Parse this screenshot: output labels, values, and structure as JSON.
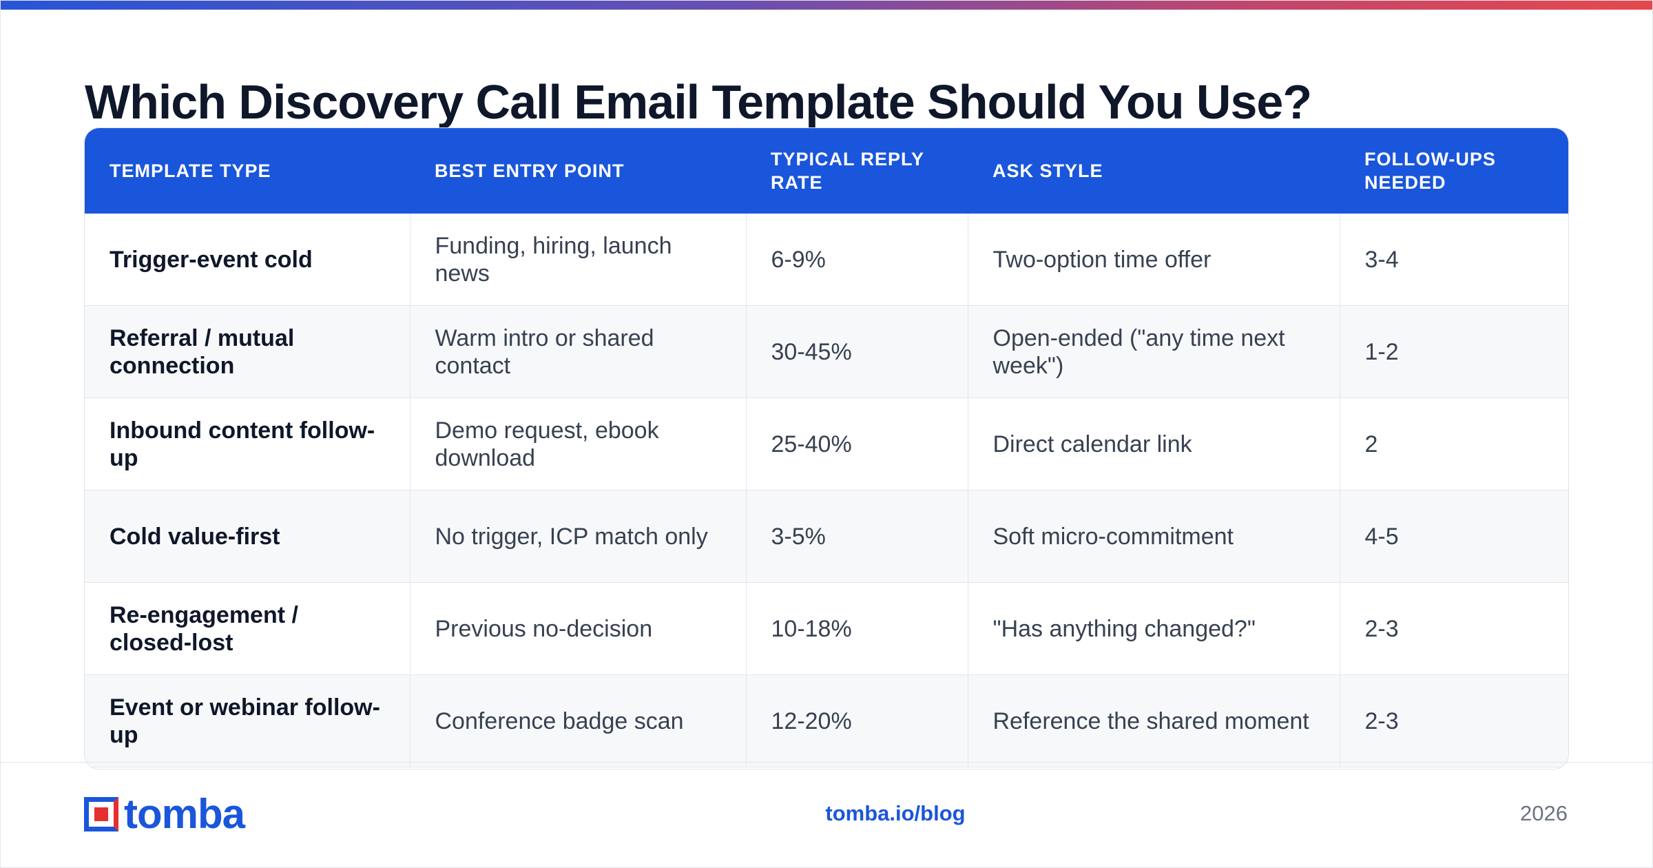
{
  "title": "Which Discovery Call Email Template Should You Use?",
  "table": {
    "headers": [
      "TEMPLATE TYPE",
      "BEST ENTRY POINT",
      "TYPICAL REPLY RATE",
      "ASK STYLE",
      "FOLLOW-UPS NEEDED"
    ],
    "rows": [
      [
        "Trigger-event cold",
        "Funding, hiring, launch news",
        "6-9%",
        "Two-option time offer",
        "3-4"
      ],
      [
        "Referral / mutual connection",
        "Warm intro or shared contact",
        "30-45%",
        "Open-ended (\"any time next week\")",
        "1-2"
      ],
      [
        "Inbound content follow-up",
        "Demo request, ebook download",
        "25-40%",
        "Direct calendar link",
        "2"
      ],
      [
        "Cold value-first",
        "No trigger, ICP match only",
        "3-5%",
        "Soft micro-commitment",
        "4-5"
      ],
      [
        "Re-engagement / closed-lost",
        "Previous no-decision",
        "10-18%",
        "\"Has anything changed?\"",
        "2-3"
      ],
      [
        "Event or webinar follow-up",
        "Conference badge scan",
        "12-20%",
        "Reference the shared moment",
        "2-3"
      ]
    ]
  },
  "footer": {
    "logo_text": "tomba",
    "link": "tomba.io/blog",
    "year": "2026"
  },
  "colors": {
    "brand_blue": "#1a56db",
    "brand_red": "#e5302f"
  }
}
